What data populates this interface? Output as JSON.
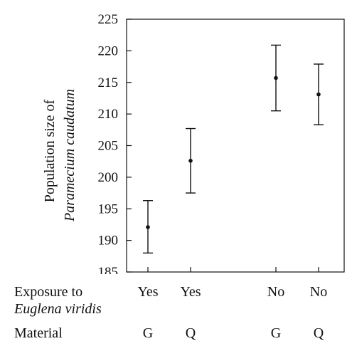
{
  "chart_data": {
    "type": "scatter",
    "subtype": "error-bar",
    "ylabel_line1": "Population size of",
    "ylabel_line2": "Paramecium caudatum",
    "ylim": [
      185,
      225
    ],
    "yticks": [
      185,
      190,
      195,
      200,
      205,
      210,
      215,
      220,
      225
    ],
    "x_positions": [
      1,
      2,
      4,
      5
    ],
    "xlim": [
      0.5,
      5.6
    ],
    "points": [
      {
        "exposure": "Yes",
        "material": "G",
        "mean": 192.1,
        "lower": 188.0,
        "upper": 196.3
      },
      {
        "exposure": "Yes",
        "material": "Q",
        "mean": 202.6,
        "lower": 197.5,
        "upper": 207.7
      },
      {
        "exposure": "No",
        "material": "G",
        "mean": 215.7,
        "lower": 210.5,
        "upper": 220.9
      },
      {
        "exposure": "No",
        "material": "Q",
        "mean": 213.1,
        "lower": 208.3,
        "upper": 217.9
      }
    ],
    "grid": false
  },
  "rows": {
    "exposure_label_line1": "Exposure to",
    "exposure_label_line2": "Euglena viridis",
    "material_label": "Material"
  }
}
